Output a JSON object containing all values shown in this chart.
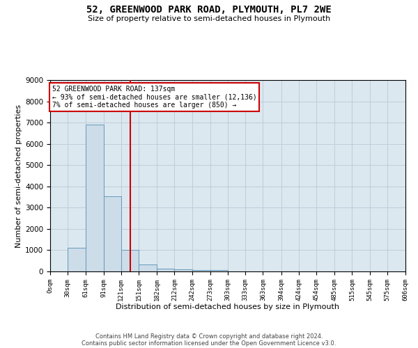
{
  "title_line1": "52, GREENWOOD PARK ROAD, PLYMOUTH, PL7 2WE",
  "title_line2": "Size of property relative to semi-detached houses in Plymouth",
  "xlabel": "Distribution of semi-detached houses by size in Plymouth",
  "ylabel": "Number of semi-detached properties",
  "bar_edges": [
    0,
    30,
    61,
    91,
    121,
    151,
    182,
    212,
    242,
    273,
    303,
    333,
    363,
    394,
    424,
    454,
    485,
    515,
    545,
    575,
    606
  ],
  "bar_heights": [
    0,
    1100,
    6900,
    3550,
    1000,
    320,
    130,
    100,
    70,
    50,
    0,
    0,
    0,
    0,
    0,
    0,
    0,
    0,
    0,
    0
  ],
  "bar_color": "#ccdce8",
  "bar_edge_color": "#6699bb",
  "property_size": 137,
  "property_line_color": "#cc0000",
  "annotation_text_line1": "52 GREENWOOD PARK ROAD: 137sqm",
  "annotation_text_line2": "← 93% of semi-detached houses are smaller (12,136)",
  "annotation_text_line3": "7% of semi-detached houses are larger (850) →",
  "annotation_box_color": "#cc0000",
  "ylim": [
    0,
    9000
  ],
  "yticks": [
    0,
    1000,
    2000,
    3000,
    4000,
    5000,
    6000,
    7000,
    8000,
    9000
  ],
  "xtick_labels": [
    "0sqm",
    "30sqm",
    "61sqm",
    "91sqm",
    "121sqm",
    "151sqm",
    "182sqm",
    "212sqm",
    "242sqm",
    "273sqm",
    "303sqm",
    "333sqm",
    "363sqm",
    "394sqm",
    "424sqm",
    "454sqm",
    "485sqm",
    "515sqm",
    "545sqm",
    "575sqm",
    "606sqm"
  ],
  "footer_line1": "Contains HM Land Registry data © Crown copyright and database right 2024.",
  "footer_line2": "Contains public sector information licensed under the Open Government Licence v3.0.",
  "bg_color": "#ffffff",
  "plot_bg_color": "#dce8f0",
  "grid_color": "#c0ccd8"
}
